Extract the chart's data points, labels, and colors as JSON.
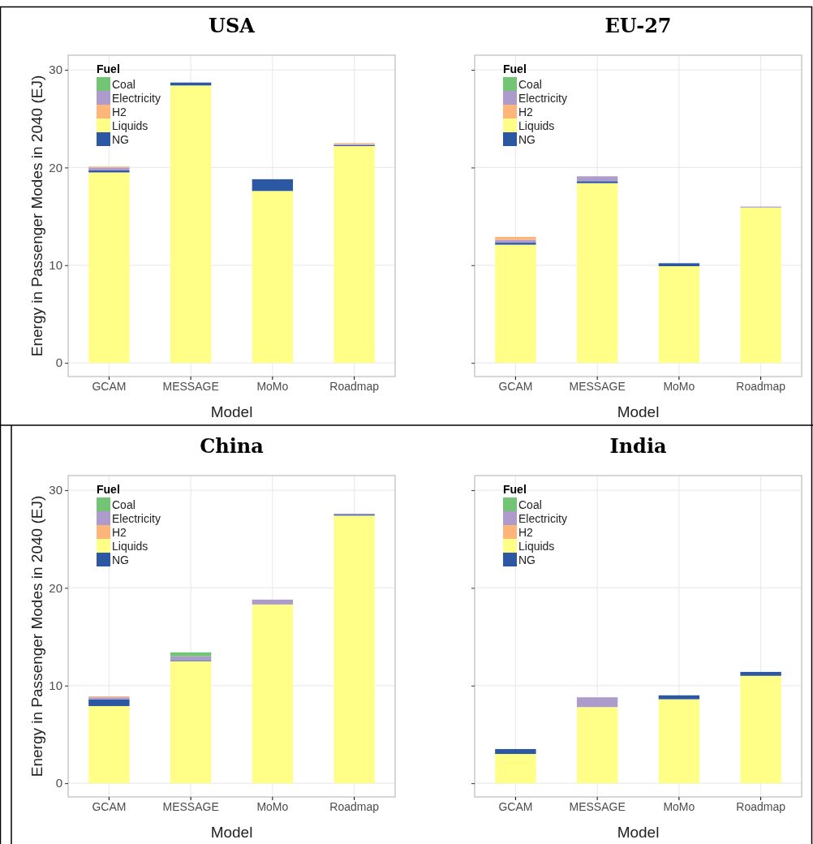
{
  "chart_data": [
    {
      "type": "bar",
      "stacked": true,
      "title": "USA",
      "xlabel": "Model",
      "ylabel": "Energy in Passenger Modes in 2040 (EJ)",
      "legend_title": "Fuel",
      "legend": "top left",
      "grid": true,
      "categories": [
        "GCAM",
        "MESSAGE",
        "MoMo",
        "Roadmap"
      ],
      "ylim": [
        -1.4,
        31.5
      ],
      "yticks": [
        0,
        10,
        20,
        30
      ],
      "series": [
        {
          "name": "Liquids",
          "color": "#ffff88",
          "values": [
            19.5,
            28.4,
            17.6,
            22.2
          ]
        },
        {
          "name": "NG",
          "color": "#2b57a3",
          "values": [
            0.2,
            0.3,
            1.2,
            0.1
          ]
        },
        {
          "name": "Electricity",
          "color": "#ad9ccb",
          "values": [
            0.3,
            0,
            0,
            0.1
          ]
        },
        {
          "name": "H2",
          "color": "#fdb57a",
          "values": [
            0.1,
            0,
            0,
            0.1
          ]
        },
        {
          "name": "Coal",
          "color": "#74c476",
          "values": [
            0,
            0,
            0,
            0
          ]
        }
      ]
    },
    {
      "type": "bar",
      "stacked": true,
      "title": "EU-27",
      "xlabel": "Model",
      "legend_title": "Fuel",
      "legend": "top left",
      "grid": true,
      "tick_labels": "x",
      "categories": [
        "GCAM",
        "MESSAGE",
        "MoMo",
        "Roadmap"
      ],
      "ylim": [
        -1.4,
        31.5
      ],
      "yticks": [
        0,
        10,
        20,
        30
      ],
      "series": [
        {
          "name": "Liquids",
          "color": "#ffff88",
          "values": [
            12.1,
            18.4,
            9.9,
            15.9
          ]
        },
        {
          "name": "NG",
          "color": "#2b57a3",
          "values": [
            0.2,
            0.2,
            0.3,
            0
          ]
        },
        {
          "name": "Electricity",
          "color": "#ad9ccb",
          "values": [
            0.3,
            0.5,
            0,
            0.1
          ]
        },
        {
          "name": "H2",
          "color": "#fdb57a",
          "values": [
            0.3,
            0,
            0,
            0
          ]
        },
        {
          "name": "Coal",
          "color": "#74c476",
          "values": [
            0,
            0,
            0,
            0
          ]
        }
      ]
    },
    {
      "type": "bar",
      "stacked": true,
      "title": "China",
      "xlabel": "Model",
      "ylabel": "Energy in Passenger Modes in 2040 (EJ)",
      "legend_title": "Fuel",
      "legend": "top left",
      "grid": true,
      "categories": [
        "GCAM",
        "MESSAGE",
        "MoMo",
        "Roadmap"
      ],
      "ylim": [
        -1.4,
        31.5
      ],
      "yticks": [
        0,
        10,
        20,
        30
      ],
      "series": [
        {
          "name": "Liquids",
          "color": "#ffff88",
          "values": [
            7.9,
            12.5,
            18.3,
            27.4
          ]
        },
        {
          "name": "NG",
          "color": "#2b57a3",
          "values": [
            0.7,
            0.1,
            0,
            0.1
          ]
        },
        {
          "name": "Electricity",
          "color": "#ad9ccb",
          "values": [
            0.2,
            0.4,
            0.5,
            0.1
          ]
        },
        {
          "name": "H2",
          "color": "#fdb57a",
          "values": [
            0.1,
            0,
            0,
            0
          ]
        },
        {
          "name": "Coal",
          "color": "#74c476",
          "values": [
            0,
            0.4,
            0,
            0
          ]
        }
      ]
    },
    {
      "type": "bar",
      "stacked": true,
      "title": "India",
      "xlabel": "Model",
      "legend_title": "Fuel",
      "legend": "top left",
      "grid": true,
      "tick_labels": "x",
      "categories": [
        "GCAM",
        "MESSAGE",
        "MoMo",
        "Roadmap"
      ],
      "ylim": [
        -1.4,
        31.5
      ],
      "yticks": [
        0,
        10,
        20,
        30
      ],
      "series": [
        {
          "name": "Liquids",
          "color": "#ffff88",
          "values": [
            3.0,
            7.8,
            8.6,
            11.0
          ]
        },
        {
          "name": "NG",
          "color": "#2b57a3",
          "values": [
            0.5,
            0,
            0.4,
            0.4
          ]
        },
        {
          "name": "Electricity",
          "color": "#ad9ccb",
          "values": [
            0,
            1.0,
            0,
            0
          ]
        },
        {
          "name": "H2",
          "color": "#fdb57a",
          "values": [
            0,
            0,
            0,
            0
          ]
        },
        {
          "name": "Coal",
          "color": "#74c476",
          "values": [
            0,
            0,
            0,
            0
          ]
        }
      ]
    }
  ]
}
